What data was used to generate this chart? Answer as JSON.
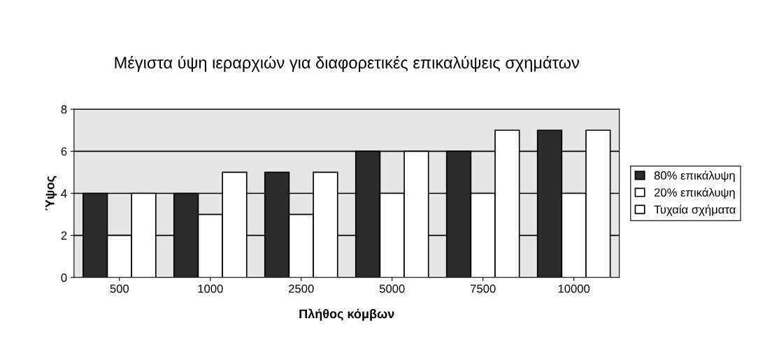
{
  "chart_data": {
    "type": "bar",
    "title": "Μέγιστα ύψη ιεραρχιών για διαφορετικές επικαλύψεις σχημάτων",
    "xlabel": "Πλήθος κόμβων",
    "ylabel": "Ύψος",
    "categories": [
      "500",
      "1000",
      "2500",
      "5000",
      "7500",
      "10000"
    ],
    "series": [
      {
        "name": "80% επικάλυψη",
        "color": "#2b2b2b",
        "values": [
          4,
          4,
          5,
          6,
          6,
          7
        ]
      },
      {
        "name": "20% επικάλυψη",
        "color": "#ffffff",
        "values": [
          2,
          3,
          3,
          4,
          4,
          4
        ]
      },
      {
        "name": "Τυχαία σχήματα",
        "color": "#ffffff",
        "values": [
          4,
          5,
          5,
          6,
          7,
          7
        ]
      }
    ],
    "ylim": [
      0,
      8
    ],
    "yticks": [
      0,
      2,
      4,
      6,
      8
    ],
    "grid": "y",
    "legend": "right"
  }
}
